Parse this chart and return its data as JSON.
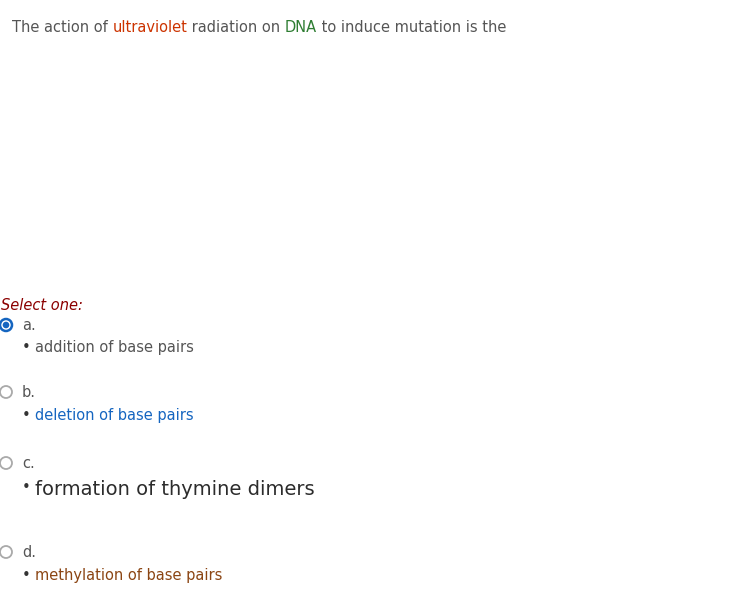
{
  "question_parts": [
    {
      "text": "The action of ",
      "color": "#555555"
    },
    {
      "text": "ultraviolet",
      "color": "#cc3300"
    },
    {
      "text": " radiation on ",
      "color": "#555555"
    },
    {
      "text": "DNA",
      "color": "#2e7d32"
    },
    {
      "text": " to induce mutation is the",
      "color": "#555555"
    }
  ],
  "select_label": "Select one:",
  "select_color": "#8b0000",
  "options": [
    {
      "letter": "a.",
      "letter_color": "#555555",
      "bullet_text": "addition of base pairs",
      "bullet_color": "#555555",
      "radio_filled": true,
      "radio_color": "#1565c0"
    },
    {
      "letter": "b.",
      "letter_color": "#555555",
      "bullet_text": "deletion of base pairs",
      "bullet_color": "#1565c0",
      "radio_filled": false,
      "radio_color": "#aaaaaa"
    },
    {
      "letter": "c.",
      "letter_color": "#555555",
      "bullet_text": "formation of thymine dimers",
      "bullet_color": "#2c2c2c",
      "bullet_fontsize": 14,
      "bullet_bold": false,
      "radio_filled": false,
      "radio_color": "#aaaaaa"
    },
    {
      "letter": "d.",
      "letter_color": "#555555",
      "bullet_text": "methylation of base pairs",
      "bullet_color": "#8b4513",
      "radio_filled": false,
      "radio_color": "#aaaaaa"
    }
  ],
  "bg_color": "#ffffff",
  "figsize": [
    7.4,
    5.96
  ],
  "dpi": 100
}
